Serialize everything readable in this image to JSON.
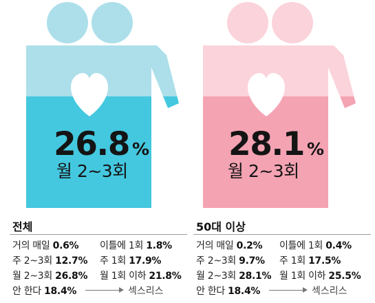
{
  "colors": {
    "teal_light": "#acdfea",
    "teal": "#44c8df",
    "pink_light": "#fbd3da",
    "pink": "#f4a3b3",
    "heart": "#ffffff"
  },
  "chart_data": [
    {
      "type": "pictograph",
      "icon": "couple-with-heart-icon",
      "group": "전체",
      "headline": {
        "value": "26.8",
        "unit": "%",
        "label": "월 2~3회"
      },
      "fill_fraction": 0.268,
      "frequency_distribution": [
        {
          "label": "거의 매일",
          "value": "0.6%"
        },
        {
          "label": "이틀에 1회",
          "value": "1.8%"
        },
        {
          "label": "주 2~3회",
          "value": "12.7%"
        },
        {
          "label": "주 1회",
          "value": "17.9%"
        },
        {
          "label": "월 2~3회",
          "value": "26.8%"
        },
        {
          "label": "월 1회 이하",
          "value": "21.8%"
        },
        {
          "label": "안 한다",
          "value": "18.4%"
        }
      ],
      "result_label": "섹스리스"
    },
    {
      "type": "pictograph",
      "icon": "couple-with-heart-icon",
      "group": "50대 이상",
      "headline": {
        "value": "28.1",
        "unit": "%",
        "label": "월 2~3회"
      },
      "fill_fraction": 0.281,
      "frequency_distribution": [
        {
          "label": "거의 매일",
          "value": "0.2%"
        },
        {
          "label": "이틀에 1회",
          "value": "0.4%"
        },
        {
          "label": "주 2~3회",
          "value": "9.7%"
        },
        {
          "label": "주 1회",
          "value": "17.5%"
        },
        {
          "label": "월 2~3회",
          "value": "28.1%"
        },
        {
          "label": "월 1회 이하",
          "value": "25.5%"
        },
        {
          "label": "안 한다",
          "value": "18.4%"
        }
      ],
      "result_label": "섹스리스"
    }
  ]
}
